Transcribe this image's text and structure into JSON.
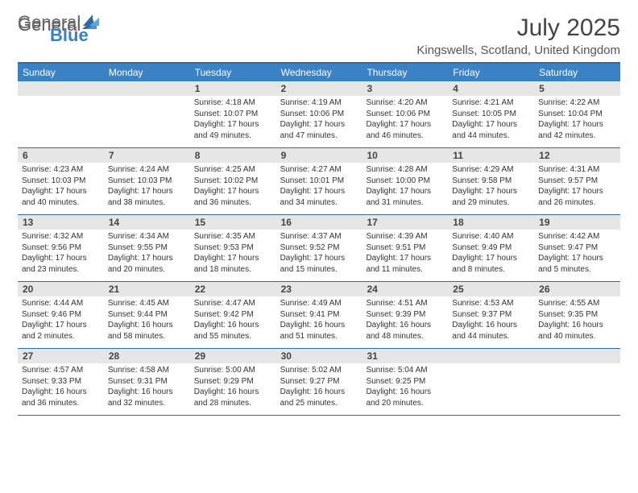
{
  "logo": {
    "general": "General",
    "blue": "Blue"
  },
  "title": "July 2025",
  "location": "Kingswells, Scotland, United Kingdom",
  "header_bg": "#3b82c4",
  "border_color": "#2e6da4",
  "numbar_bg": "#e6e6e6",
  "text_color": "#333333",
  "day_names": [
    "Sunday",
    "Monday",
    "Tuesday",
    "Wednesday",
    "Thursday",
    "Friday",
    "Saturday"
  ],
  "weeks": [
    [
      {
        "n": "",
        "sunrise": "",
        "sunset": "",
        "daylight": ""
      },
      {
        "n": "",
        "sunrise": "",
        "sunset": "",
        "daylight": ""
      },
      {
        "n": "1",
        "sunrise": "Sunrise: 4:18 AM",
        "sunset": "Sunset: 10:07 PM",
        "daylight": "Daylight: 17 hours and 49 minutes."
      },
      {
        "n": "2",
        "sunrise": "Sunrise: 4:19 AM",
        "sunset": "Sunset: 10:06 PM",
        "daylight": "Daylight: 17 hours and 47 minutes."
      },
      {
        "n": "3",
        "sunrise": "Sunrise: 4:20 AM",
        "sunset": "Sunset: 10:06 PM",
        "daylight": "Daylight: 17 hours and 46 minutes."
      },
      {
        "n": "4",
        "sunrise": "Sunrise: 4:21 AM",
        "sunset": "Sunset: 10:05 PM",
        "daylight": "Daylight: 17 hours and 44 minutes."
      },
      {
        "n": "5",
        "sunrise": "Sunrise: 4:22 AM",
        "sunset": "Sunset: 10:04 PM",
        "daylight": "Daylight: 17 hours and 42 minutes."
      }
    ],
    [
      {
        "n": "6",
        "sunrise": "Sunrise: 4:23 AM",
        "sunset": "Sunset: 10:03 PM",
        "daylight": "Daylight: 17 hours and 40 minutes."
      },
      {
        "n": "7",
        "sunrise": "Sunrise: 4:24 AM",
        "sunset": "Sunset: 10:03 PM",
        "daylight": "Daylight: 17 hours and 38 minutes."
      },
      {
        "n": "8",
        "sunrise": "Sunrise: 4:25 AM",
        "sunset": "Sunset: 10:02 PM",
        "daylight": "Daylight: 17 hours and 36 minutes."
      },
      {
        "n": "9",
        "sunrise": "Sunrise: 4:27 AM",
        "sunset": "Sunset: 10:01 PM",
        "daylight": "Daylight: 17 hours and 34 minutes."
      },
      {
        "n": "10",
        "sunrise": "Sunrise: 4:28 AM",
        "sunset": "Sunset: 10:00 PM",
        "daylight": "Daylight: 17 hours and 31 minutes."
      },
      {
        "n": "11",
        "sunrise": "Sunrise: 4:29 AM",
        "sunset": "Sunset: 9:58 PM",
        "daylight": "Daylight: 17 hours and 29 minutes."
      },
      {
        "n": "12",
        "sunrise": "Sunrise: 4:31 AM",
        "sunset": "Sunset: 9:57 PM",
        "daylight": "Daylight: 17 hours and 26 minutes."
      }
    ],
    [
      {
        "n": "13",
        "sunrise": "Sunrise: 4:32 AM",
        "sunset": "Sunset: 9:56 PM",
        "daylight": "Daylight: 17 hours and 23 minutes."
      },
      {
        "n": "14",
        "sunrise": "Sunrise: 4:34 AM",
        "sunset": "Sunset: 9:55 PM",
        "daylight": "Daylight: 17 hours and 20 minutes."
      },
      {
        "n": "15",
        "sunrise": "Sunrise: 4:35 AM",
        "sunset": "Sunset: 9:53 PM",
        "daylight": "Daylight: 17 hours and 18 minutes."
      },
      {
        "n": "16",
        "sunrise": "Sunrise: 4:37 AM",
        "sunset": "Sunset: 9:52 PM",
        "daylight": "Daylight: 17 hours and 15 minutes."
      },
      {
        "n": "17",
        "sunrise": "Sunrise: 4:39 AM",
        "sunset": "Sunset: 9:51 PM",
        "daylight": "Daylight: 17 hours and 11 minutes."
      },
      {
        "n": "18",
        "sunrise": "Sunrise: 4:40 AM",
        "sunset": "Sunset: 9:49 PM",
        "daylight": "Daylight: 17 hours and 8 minutes."
      },
      {
        "n": "19",
        "sunrise": "Sunrise: 4:42 AM",
        "sunset": "Sunset: 9:47 PM",
        "daylight": "Daylight: 17 hours and 5 minutes."
      }
    ],
    [
      {
        "n": "20",
        "sunrise": "Sunrise: 4:44 AM",
        "sunset": "Sunset: 9:46 PM",
        "daylight": "Daylight: 17 hours and 2 minutes."
      },
      {
        "n": "21",
        "sunrise": "Sunrise: 4:45 AM",
        "sunset": "Sunset: 9:44 PM",
        "daylight": "Daylight: 16 hours and 58 minutes."
      },
      {
        "n": "22",
        "sunrise": "Sunrise: 4:47 AM",
        "sunset": "Sunset: 9:42 PM",
        "daylight": "Daylight: 16 hours and 55 minutes."
      },
      {
        "n": "23",
        "sunrise": "Sunrise: 4:49 AM",
        "sunset": "Sunset: 9:41 PM",
        "daylight": "Daylight: 16 hours and 51 minutes."
      },
      {
        "n": "24",
        "sunrise": "Sunrise: 4:51 AM",
        "sunset": "Sunset: 9:39 PM",
        "daylight": "Daylight: 16 hours and 48 minutes."
      },
      {
        "n": "25",
        "sunrise": "Sunrise: 4:53 AM",
        "sunset": "Sunset: 9:37 PM",
        "daylight": "Daylight: 16 hours and 44 minutes."
      },
      {
        "n": "26",
        "sunrise": "Sunrise: 4:55 AM",
        "sunset": "Sunset: 9:35 PM",
        "daylight": "Daylight: 16 hours and 40 minutes."
      }
    ],
    [
      {
        "n": "27",
        "sunrise": "Sunrise: 4:57 AM",
        "sunset": "Sunset: 9:33 PM",
        "daylight": "Daylight: 16 hours and 36 minutes."
      },
      {
        "n": "28",
        "sunrise": "Sunrise: 4:58 AM",
        "sunset": "Sunset: 9:31 PM",
        "daylight": "Daylight: 16 hours and 32 minutes."
      },
      {
        "n": "29",
        "sunrise": "Sunrise: 5:00 AM",
        "sunset": "Sunset: 9:29 PM",
        "daylight": "Daylight: 16 hours and 28 minutes."
      },
      {
        "n": "30",
        "sunrise": "Sunrise: 5:02 AM",
        "sunset": "Sunset: 9:27 PM",
        "daylight": "Daylight: 16 hours and 25 minutes."
      },
      {
        "n": "31",
        "sunrise": "Sunrise: 5:04 AM",
        "sunset": "Sunset: 9:25 PM",
        "daylight": "Daylight: 16 hours and 20 minutes."
      },
      {
        "n": "",
        "sunrise": "",
        "sunset": "",
        "daylight": ""
      },
      {
        "n": "",
        "sunrise": "",
        "sunset": "",
        "daylight": ""
      }
    ]
  ]
}
